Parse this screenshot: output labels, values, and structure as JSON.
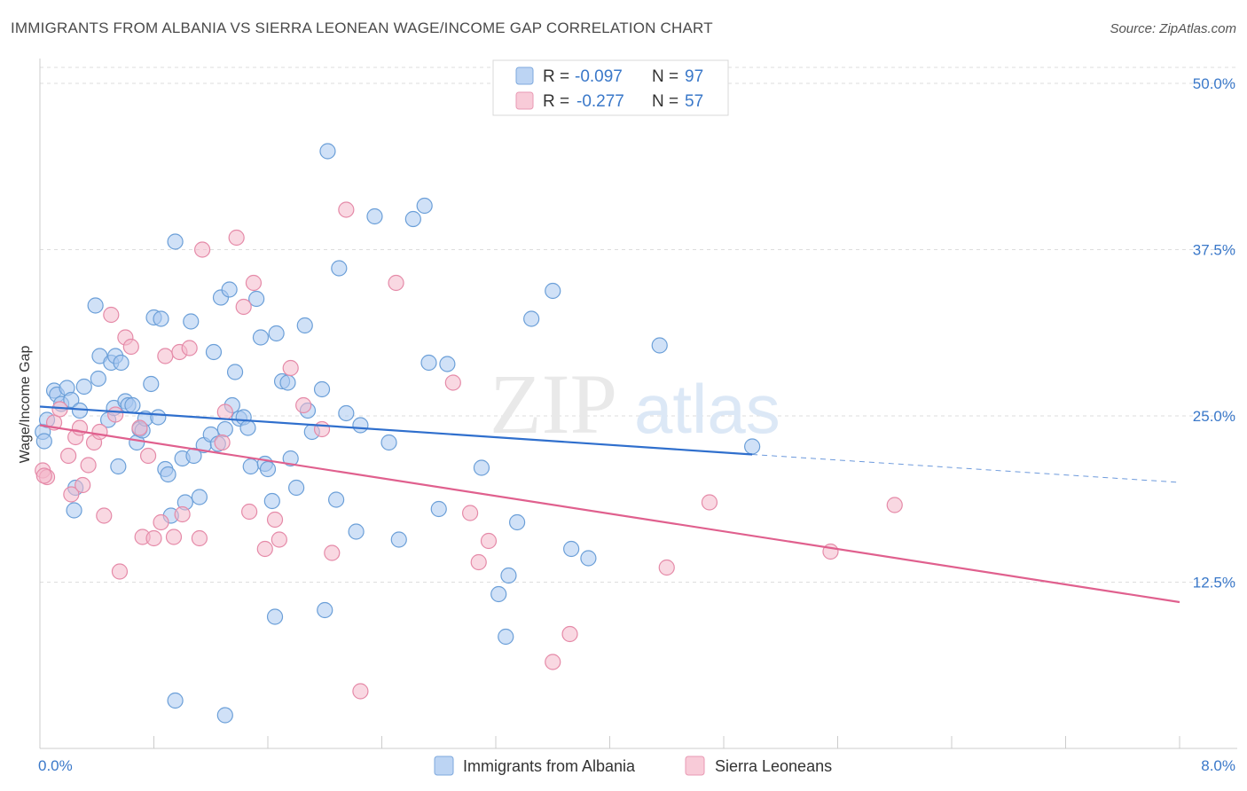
{
  "title": "IMMIGRANTS FROM ALBANIA VS SIERRA LEONEAN WAGE/INCOME GAP CORRELATION CHART",
  "source": "Source: ZipAtlas.com",
  "watermark": {
    "zip": "ZIP",
    "atlas": "atlas"
  },
  "legend": {
    "rows": [
      {
        "r_label": "R = ",
        "r_value": "-0.097",
        "n_label": "N = ",
        "n_value": "97",
        "color": "#a9c8f0"
      },
      {
        "r_label": "R = ",
        "r_value": "-0.277",
        "n_label": "N = ",
        "n_value": "57",
        "color": "#f4b8cb"
      }
    ]
  },
  "colors": {
    "albania_fill": "#a9c8f0",
    "albania_stroke": "#6b9fd8",
    "albania_line": "#2f6fcd",
    "sierra_fill": "#f4b8cb",
    "sierra_stroke": "#e58aa8",
    "sierra_line": "#e0608e",
    "tick_text": "#3a78c9",
    "grid": "#dddddd"
  },
  "chart_data": {
    "type": "scatter",
    "title": "IMMIGRANTS FROM ALBANIA VS SIERRA LEONEAN WAGE/INCOME GAP CORRELATION CHART",
    "xlabel": "",
    "ylabel": "Wage/Income Gap",
    "xlim": [
      0,
      8
    ],
    "ylim": [
      0,
      51.2
    ],
    "x_tick_labels": [
      "0.0%",
      "8.0%"
    ],
    "y_ticks": [
      12.5,
      25.0,
      37.5,
      50.0
    ],
    "y_tick_labels": [
      "12.5%",
      "25.0%",
      "37.5%",
      "50.0%"
    ],
    "grid": true,
    "legend_position": "top-center",
    "series": [
      {
        "name": "Immigrants from Albania",
        "color": "#a9c8f0",
        "trend": {
          "x": [
            0,
            5.0
          ],
          "y": [
            25.7,
            22.1
          ],
          "dashed_to": [
            8.0,
            20.0
          ]
        },
        "points": [
          [
            0.02,
            23.8
          ],
          [
            0.03,
            23.1
          ],
          [
            0.05,
            24.7
          ],
          [
            0.1,
            26.9
          ],
          [
            0.12,
            26.6
          ],
          [
            0.15,
            25.9
          ],
          [
            0.19,
            27.1
          ],
          [
            0.22,
            26.2
          ],
          [
            0.28,
            25.4
          ],
          [
            0.31,
            27.2
          ],
          [
            0.39,
            33.3
          ],
          [
            0.41,
            27.8
          ],
          [
            0.42,
            29.5
          ],
          [
            0.48,
            24.7
          ],
          [
            0.5,
            29.0
          ],
          [
            0.52,
            25.6
          ],
          [
            0.55,
            21.2
          ],
          [
            0.53,
            29.5
          ],
          [
            0.57,
            29.0
          ],
          [
            0.6,
            26.1
          ],
          [
            0.62,
            25.8
          ],
          [
            0.65,
            25.8
          ],
          [
            0.68,
            23.0
          ],
          [
            0.7,
            24.0
          ],
          [
            0.72,
            23.9
          ],
          [
            0.74,
            24.8
          ],
          [
            0.78,
            27.4
          ],
          [
            0.8,
            32.4
          ],
          [
            0.83,
            24.9
          ],
          [
            0.85,
            32.3
          ],
          [
            0.88,
            21.0
          ],
          [
            0.9,
            20.6
          ],
          [
            0.92,
            17.5
          ],
          [
            0.95,
            38.1
          ],
          [
            1.0,
            21.8
          ],
          [
            1.02,
            18.5
          ],
          [
            1.06,
            32.1
          ],
          [
            1.08,
            22.0
          ],
          [
            1.12,
            18.9
          ],
          [
            1.15,
            22.8
          ],
          [
            1.2,
            23.6
          ],
          [
            1.22,
            29.8
          ],
          [
            1.25,
            22.9
          ],
          [
            1.27,
            33.9
          ],
          [
            1.3,
            24.0
          ],
          [
            1.33,
            34.5
          ],
          [
            1.35,
            25.8
          ],
          [
            1.37,
            28.3
          ],
          [
            1.4,
            24.8
          ],
          [
            1.43,
            24.9
          ],
          [
            1.46,
            24.1
          ],
          [
            1.48,
            21.2
          ],
          [
            1.52,
            33.8
          ],
          [
            1.55,
            30.9
          ],
          [
            1.58,
            21.4
          ],
          [
            1.6,
            21.0
          ],
          [
            1.63,
            18.6
          ],
          [
            1.66,
            31.2
          ],
          [
            1.7,
            27.6
          ],
          [
            1.74,
            27.5
          ],
          [
            1.76,
            21.8
          ],
          [
            1.8,
            19.6
          ],
          [
            1.86,
            31.8
          ],
          [
            1.88,
            25.4
          ],
          [
            1.91,
            23.8
          ],
          [
            1.98,
            27.0
          ],
          [
            2.02,
            44.9
          ],
          [
            2.08,
            18.7
          ],
          [
            2.1,
            36.1
          ],
          [
            2.15,
            25.2
          ],
          [
            2.22,
            16.3
          ],
          [
            2.25,
            24.3
          ],
          [
            2.35,
            40.0
          ],
          [
            2.45,
            23.0
          ],
          [
            2.52,
            15.7
          ],
          [
            2.62,
            39.8
          ],
          [
            2.7,
            40.8
          ],
          [
            2.73,
            29.0
          ],
          [
            2.8,
            18.0
          ],
          [
            2.86,
            28.9
          ],
          [
            3.1,
            21.1
          ],
          [
            3.22,
            11.6
          ],
          [
            3.27,
            8.4
          ],
          [
            3.29,
            13.0
          ],
          [
            3.35,
            17.0
          ],
          [
            3.45,
            32.3
          ],
          [
            3.6,
            34.4
          ],
          [
            3.73,
            15.0
          ],
          [
            3.85,
            14.3
          ],
          [
            4.35,
            30.3
          ],
          [
            5.0,
            22.7
          ],
          [
            0.25,
            19.6
          ],
          [
            0.24,
            17.9
          ],
          [
            1.65,
            9.9
          ],
          [
            2.0,
            10.4
          ],
          [
            0.95,
            3.6
          ],
          [
            1.3,
            2.5
          ]
        ]
      },
      {
        "name": "Sierra Leoneans",
        "color": "#f4b8cb",
        "trend": {
          "x": [
            0,
            8.0
          ],
          "y": [
            24.3,
            11.0
          ]
        },
        "points": [
          [
            0.02,
            20.9
          ],
          [
            0.05,
            20.4
          ],
          [
            0.1,
            24.5
          ],
          [
            0.14,
            25.5
          ],
          [
            0.2,
            22.0
          ],
          [
            0.22,
            19.1
          ],
          [
            0.25,
            23.4
          ],
          [
            0.28,
            24.1
          ],
          [
            0.3,
            19.8
          ],
          [
            0.34,
            21.3
          ],
          [
            0.38,
            23.0
          ],
          [
            0.42,
            23.8
          ],
          [
            0.45,
            17.5
          ],
          [
            0.5,
            32.6
          ],
          [
            0.53,
            25.1
          ],
          [
            0.56,
            13.3
          ],
          [
            0.6,
            30.9
          ],
          [
            0.64,
            30.2
          ],
          [
            0.7,
            24.1
          ],
          [
            0.72,
            15.9
          ],
          [
            0.76,
            22.0
          ],
          [
            0.8,
            15.8
          ],
          [
            0.85,
            17.0
          ],
          [
            0.88,
            29.5
          ],
          [
            0.94,
            15.9
          ],
          [
            0.98,
            29.8
          ],
          [
            1.0,
            17.6
          ],
          [
            1.05,
            30.1
          ],
          [
            1.12,
            15.8
          ],
          [
            1.14,
            37.5
          ],
          [
            1.28,
            23.0
          ],
          [
            1.3,
            25.3
          ],
          [
            1.38,
            38.4
          ],
          [
            1.43,
            33.2
          ],
          [
            1.47,
            17.8
          ],
          [
            1.5,
            35.0
          ],
          [
            1.58,
            15.0
          ],
          [
            1.65,
            17.2
          ],
          [
            1.68,
            15.7
          ],
          [
            1.76,
            28.6
          ],
          [
            1.85,
            25.8
          ],
          [
            1.98,
            24.0
          ],
          [
            2.05,
            14.7
          ],
          [
            2.15,
            40.5
          ],
          [
            2.25,
            4.3
          ],
          [
            2.5,
            35.0
          ],
          [
            2.9,
            27.5
          ],
          [
            3.02,
            17.7
          ],
          [
            3.08,
            14.0
          ],
          [
            3.15,
            15.6
          ],
          [
            3.6,
            6.5
          ],
          [
            3.72,
            8.6
          ],
          [
            4.4,
            13.6
          ],
          [
            4.7,
            18.5
          ],
          [
            5.55,
            14.8
          ],
          [
            6.0,
            18.3
          ],
          [
            0.03,
            20.5
          ]
        ]
      }
    ]
  },
  "axis": {
    "ylabel": "Wage/Income Gap",
    "x_min_label": "0.0%",
    "x_max_label": "8.0%"
  },
  "bottom_legend": [
    {
      "label": "Immigrants from Albania",
      "color": "#a9c8f0"
    },
    {
      "label": "Sierra Leoneans",
      "color": "#f4b8cb"
    }
  ]
}
